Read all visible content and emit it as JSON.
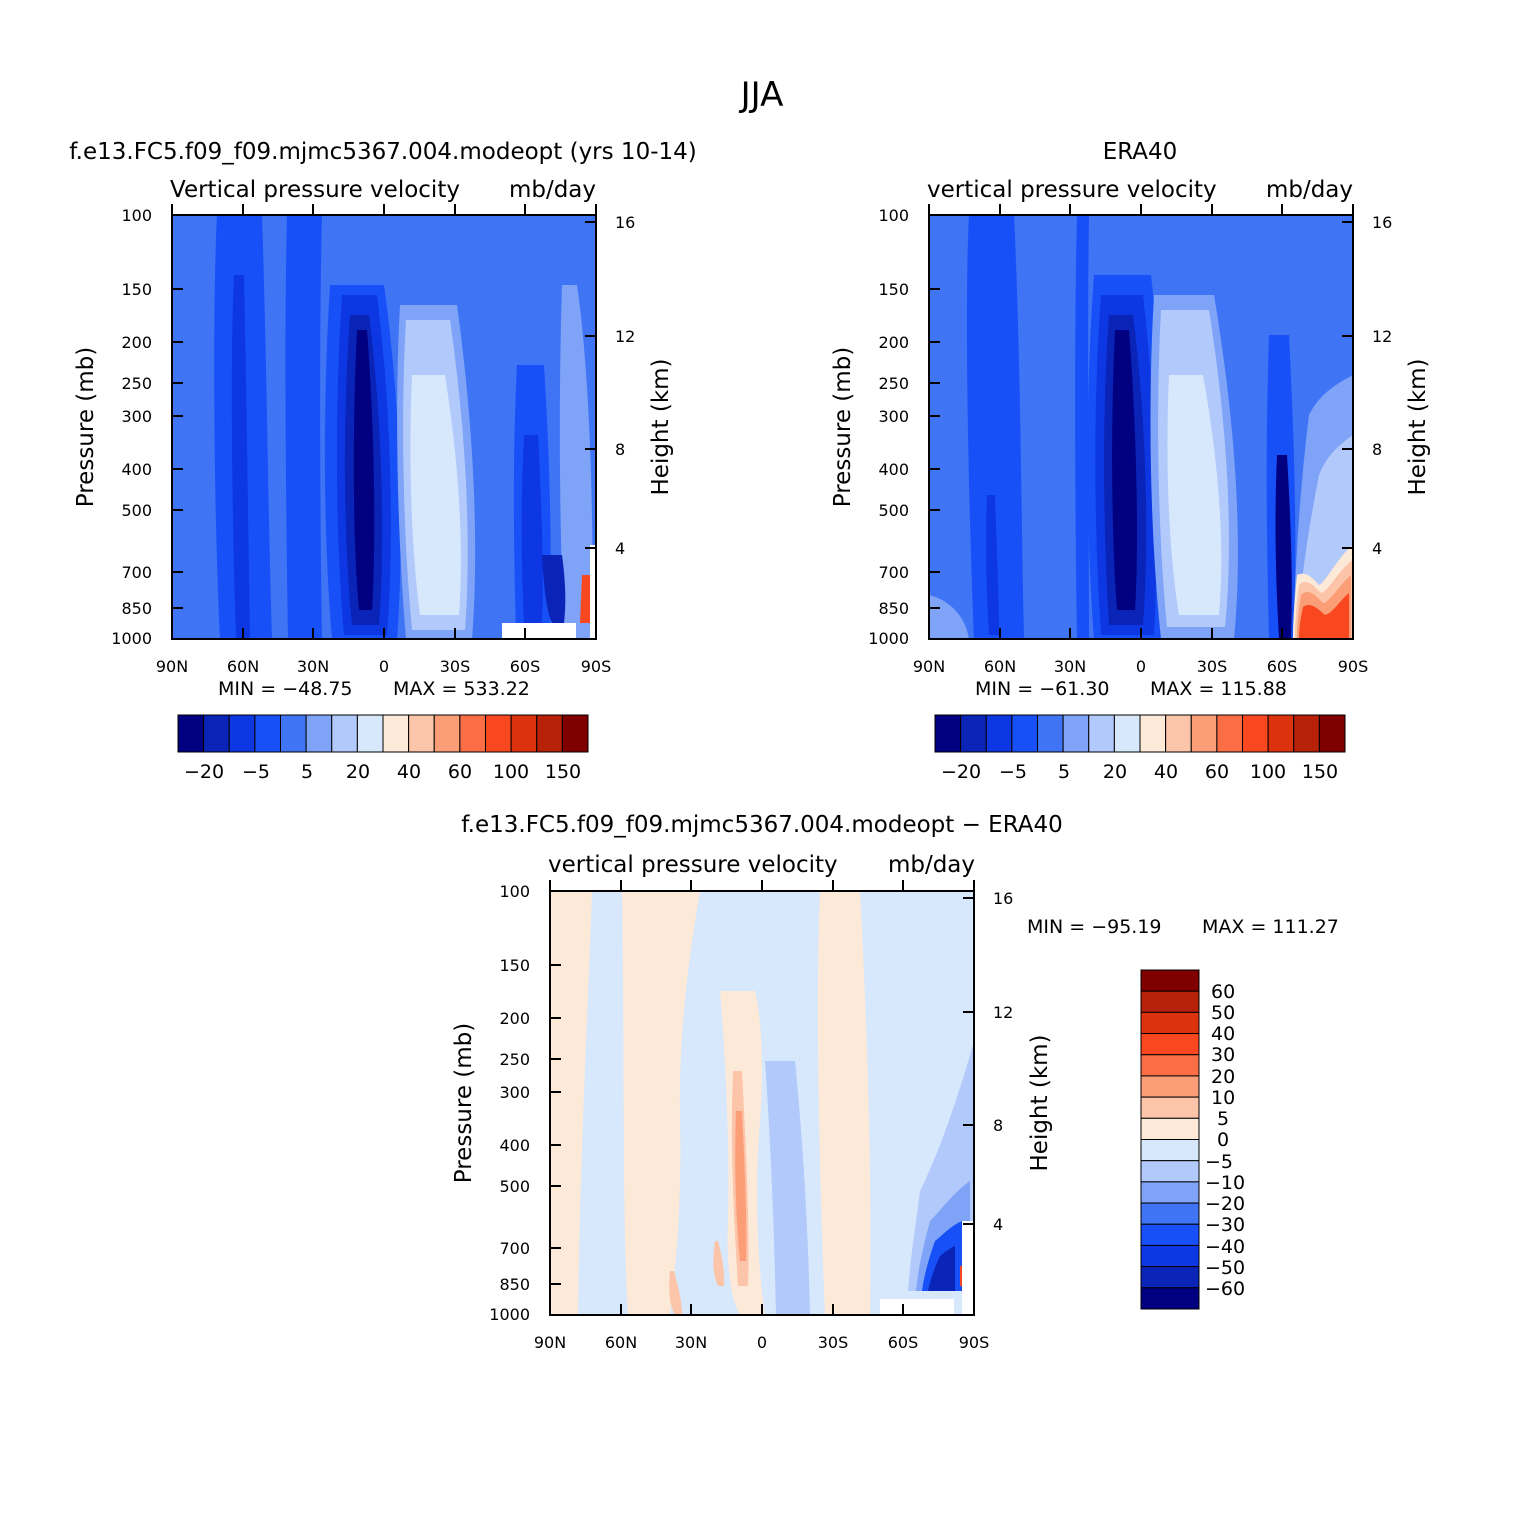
{
  "figure": {
    "season_title": "JJA"
  },
  "colors": {
    "main_scale": [
      "#000080",
      "#0a24b8",
      "#0c37e2",
      "#1750f7",
      "#3f74f5",
      "#7fa4f7",
      "#b2c9fb",
      "#d8e8fc",
      "#fde9d8",
      "#fcc4a9",
      "#fb9e77",
      "#fb6e45",
      "#f9481f",
      "#dc330e",
      "#b62107",
      "#800000"
    ],
    "diff_scale": [
      "#000080",
      "#0a24b8",
      "#0c37e2",
      "#1750f7",
      "#3f74f5",
      "#7fa4f7",
      "#b2c9fb",
      "#d8e8fc",
      "#fde9d8",
      "#fcc4a9",
      "#fb9e77",
      "#fb6e45",
      "#f9481f",
      "#dc330e",
      "#b62107",
      "#800000"
    ]
  },
  "chart_data": [
    {
      "id": "model",
      "type": "contour",
      "title": "f.e13.FC5.f09_f09.mjmc5367.004.modeopt (yrs 10-14)",
      "left_label": "Vertical pressure velocity",
      "right_label": "mb/day",
      "ylabel": "Pressure (mb)",
      "y2label": "Height (km)",
      "xticks": [
        "90N",
        "60N",
        "30N",
        "0",
        "30S",
        "60S",
        "90S"
      ],
      "yticks": [
        "100",
        "150",
        "200",
        "250",
        "300",
        "400",
        "500",
        "700",
        "850",
        "1000"
      ],
      "y2ticks": [
        "16",
        "12",
        "8",
        "4"
      ],
      "min_text": "MIN = −48.75",
      "max_text": "MAX = 533.22",
      "colorbar_labels": [
        "−20",
        "−5",
        "5",
        "20",
        "40",
        "60",
        "100",
        "150"
      ]
    },
    {
      "id": "obs",
      "type": "contour",
      "title": "ERA40",
      "left_label": "vertical pressure velocity",
      "right_label": "mb/day",
      "ylabel": "Pressure (mb)",
      "y2label": "Height (km)",
      "xticks": [
        "90N",
        "60N",
        "30N",
        "0",
        "30S",
        "60S",
        "90S"
      ],
      "yticks": [
        "100",
        "150",
        "200",
        "250",
        "300",
        "400",
        "500",
        "700",
        "850",
        "1000"
      ],
      "y2ticks": [
        "16",
        "12",
        "8",
        "4"
      ],
      "min_text": "MIN = −61.30",
      "max_text": "MAX = 115.88",
      "colorbar_labels": [
        "−20",
        "−5",
        "5",
        "20",
        "40",
        "60",
        "100",
        "150"
      ]
    },
    {
      "id": "diff",
      "type": "contour",
      "title": "f.e13.FC5.f09_f09.mjmc5367.004.modeopt − ERA40",
      "left_label": "vertical pressure velocity",
      "right_label": "mb/day",
      "ylabel": "Pressure (mb)",
      "y2label": "Height (km)",
      "xticks": [
        "90N",
        "60N",
        "30N",
        "0",
        "30S",
        "60S",
        "90S"
      ],
      "yticks": [
        "100",
        "150",
        "200",
        "250",
        "300",
        "400",
        "500",
        "700",
        "850",
        "1000"
      ],
      "y2ticks": [
        "16",
        "12",
        "8",
        "4"
      ],
      "min_text": "MIN = −95.19",
      "max_text": "MAX = 111.27",
      "colorbar_labels": [
        "60",
        "50",
        "40",
        "30",
        "20",
        "10",
        "5",
        "0",
        "−5",
        "−10",
        "−20",
        "−30",
        "−40",
        "−50",
        "−60"
      ]
    }
  ]
}
